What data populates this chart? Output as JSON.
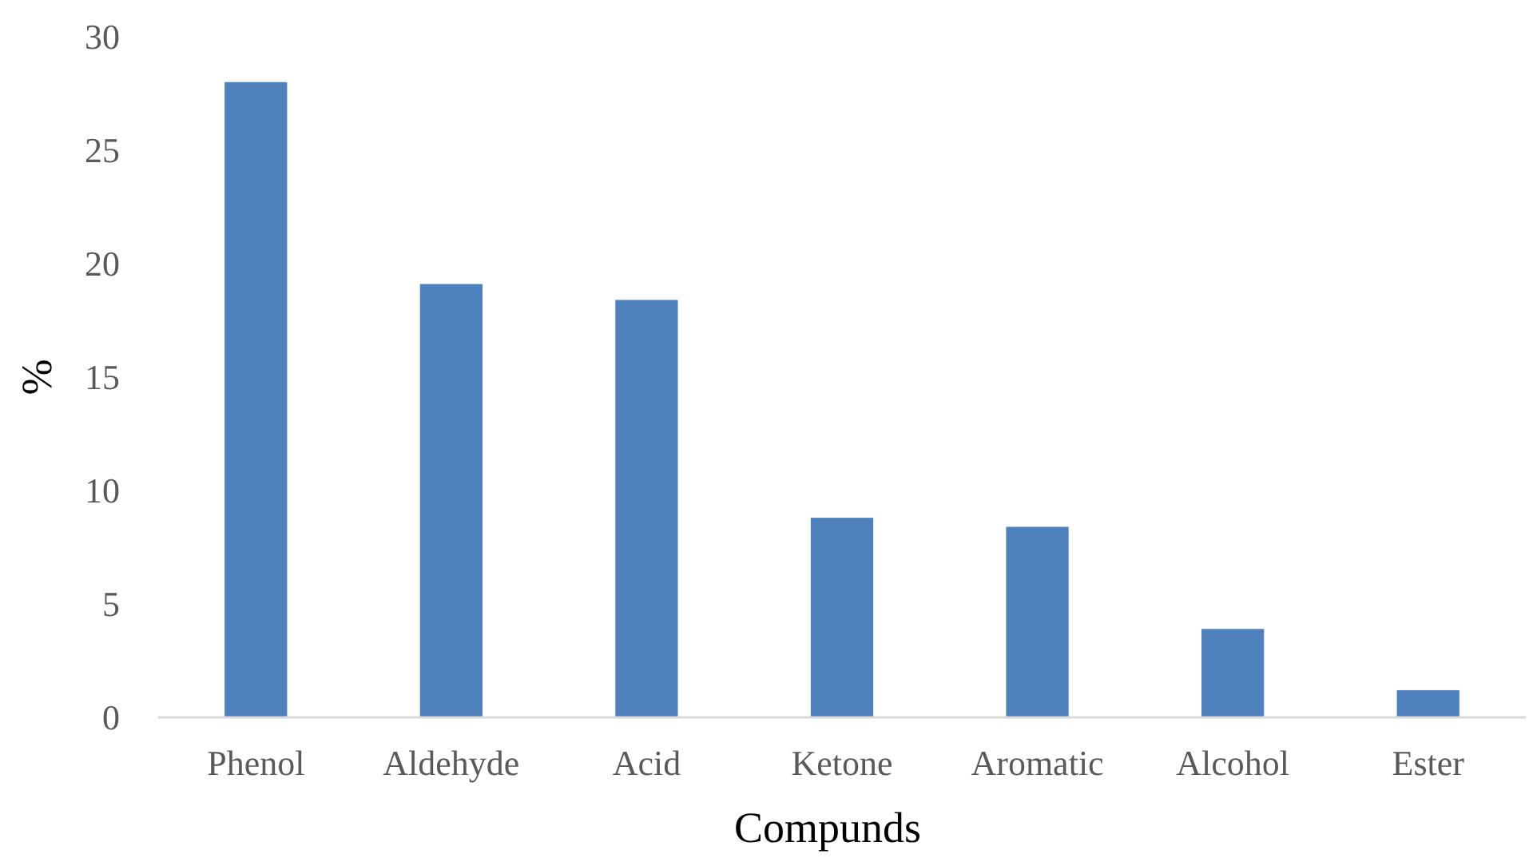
{
  "chart_data": {
    "type": "bar",
    "xlabel": "Compunds",
    "ylabel": "%",
    "categories": [
      "Phenol",
      "Aldehyde",
      "Acid",
      "Ketone",
      "Aromatic",
      "Alcohol",
      "Ester"
    ],
    "values": [
      28,
      19.1,
      18.4,
      8.8,
      8.4,
      3.9,
      1.2
    ],
    "color": "#4f81bd",
    "ylim": [
      0,
      30
    ],
    "yticks": [
      0,
      5,
      10,
      15,
      20,
      25,
      30
    ],
    "grid": false
  }
}
